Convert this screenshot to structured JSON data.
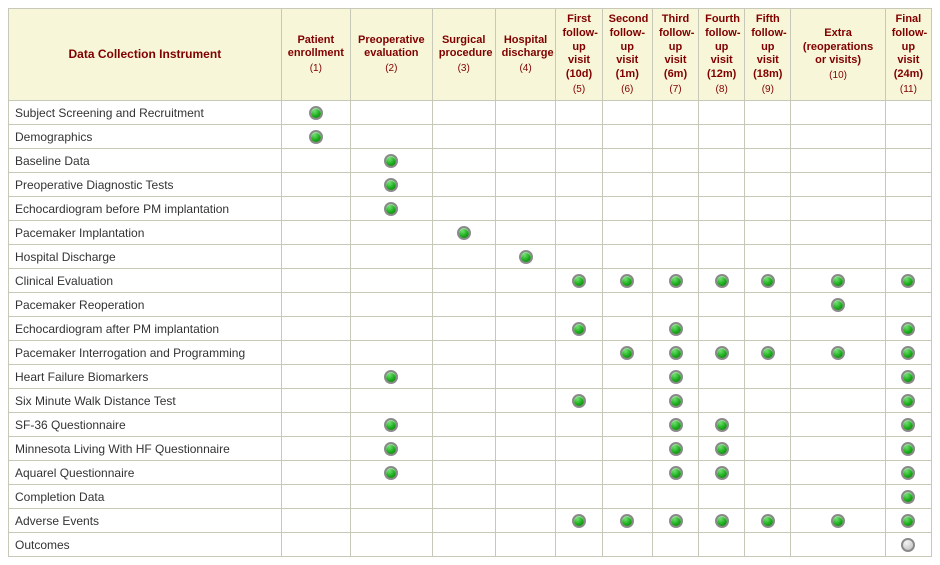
{
  "table_title": "Data Collection Instrument",
  "columns": [
    {
      "title": "Patient enrollment",
      "num": "(1)"
    },
    {
      "title": "Preoperative evaluation",
      "num": "(2)"
    },
    {
      "title": "Surgical procedure",
      "num": "(3)"
    },
    {
      "title": "Hospital discharge",
      "num": "(4)"
    },
    {
      "title": "First follow-up visit (10d)",
      "num": "(5)"
    },
    {
      "title": "Second follow-up visit (1m)",
      "num": "(6)"
    },
    {
      "title": "Third follow-up visit (6m)",
      "num": "(7)"
    },
    {
      "title": "Fourth follow-up visit (12m)",
      "num": "(8)"
    },
    {
      "title": "Fifth follow-up visit (18m)",
      "num": "(9)"
    },
    {
      "title": "Extra (reoperations or visits)",
      "num": "(10)"
    },
    {
      "title": "Final follow-up visit (24m)",
      "num": "(11)"
    }
  ],
  "rows": [
    {
      "label": "Subject Screening and Recruitment",
      "cells": [
        "g",
        "",
        "",
        "",
        "",
        "",
        "",
        "",
        "",
        "",
        ""
      ]
    },
    {
      "label": "Demographics",
      "cells": [
        "g",
        "",
        "",
        "",
        "",
        "",
        "",
        "",
        "",
        "",
        ""
      ]
    },
    {
      "label": "Baseline Data",
      "cells": [
        "",
        "g",
        "",
        "",
        "",
        "",
        "",
        "",
        "",
        "",
        ""
      ]
    },
    {
      "label": "Preoperative Diagnostic Tests",
      "cells": [
        "",
        "g",
        "",
        "",
        "",
        "",
        "",
        "",
        "",
        "",
        ""
      ]
    },
    {
      "label": "Echocardiogram before PM implantation",
      "cells": [
        "",
        "g",
        "",
        "",
        "",
        "",
        "",
        "",
        "",
        "",
        ""
      ]
    },
    {
      "label": "Pacemaker Implantation",
      "cells": [
        "",
        "",
        "g",
        "",
        "",
        "",
        "",
        "",
        "",
        "",
        ""
      ]
    },
    {
      "label": "Hospital Discharge",
      "cells": [
        "",
        "",
        "",
        "g",
        "",
        "",
        "",
        "",
        "",
        "",
        ""
      ]
    },
    {
      "label": "Clinical Evaluation",
      "cells": [
        "",
        "",
        "",
        "",
        "g",
        "g",
        "g",
        "g",
        "g",
        "g",
        "g"
      ]
    },
    {
      "label": "Pacemaker Reoperation",
      "cells": [
        "",
        "",
        "",
        "",
        "",
        "",
        "",
        "",
        "",
        "g",
        ""
      ]
    },
    {
      "label": "Echocardiogram after PM implantation",
      "cells": [
        "",
        "",
        "",
        "",
        "g",
        "",
        "g",
        "",
        "",
        "",
        "g"
      ]
    },
    {
      "label": "Pacemaker Interrogation and Programming",
      "cells": [
        "",
        "",
        "",
        "",
        "",
        "g",
        "g",
        "g",
        "g",
        "g",
        "g"
      ]
    },
    {
      "label": "Heart Failure Biomarkers",
      "cells": [
        "",
        "g",
        "",
        "",
        "",
        "",
        "g",
        "",
        "",
        "",
        "g"
      ]
    },
    {
      "label": "Six Minute Walk Distance Test",
      "cells": [
        "",
        "",
        "",
        "",
        "g",
        "",
        "g",
        "",
        "",
        "",
        "g"
      ]
    },
    {
      "label": "SF-36 Questionnaire",
      "cells": [
        "",
        "g",
        "",
        "",
        "",
        "",
        "g",
        "g",
        "",
        "",
        "g"
      ]
    },
    {
      "label": "Minnesota Living With HF Questionnaire",
      "cells": [
        "",
        "g",
        "",
        "",
        "",
        "",
        "g",
        "g",
        "",
        "",
        "g"
      ]
    },
    {
      "label": "Aquarel Questionnaire",
      "cells": [
        "",
        "g",
        "",
        "",
        "",
        "",
        "g",
        "g",
        "",
        "",
        "g"
      ]
    },
    {
      "label": "Completion Data",
      "cells": [
        "",
        "",
        "",
        "",
        "",
        "",
        "",
        "",
        "",
        "",
        "g"
      ]
    },
    {
      "label": "Adverse Events",
      "cells": [
        "",
        "",
        "",
        "",
        "g",
        "g",
        "g",
        "g",
        "g",
        "g",
        "g"
      ]
    },
    {
      "label": "Outcomes",
      "cells": [
        "",
        "",
        "",
        "",
        "",
        "",
        "",
        "",
        "",
        "",
        "x"
      ]
    }
  ],
  "colors": {
    "header_bg": "#f8f6d8",
    "header_text": "#800000",
    "border": "#c8c8b8",
    "dot_green": "#1bab1b",
    "dot_gray": "#d0d0d0"
  },
  "font": {
    "family": "Arial",
    "body_size": 12,
    "header_size": 11
  },
  "legend": {
    "g": "green-filled-dot",
    "x": "gray-empty-dot"
  }
}
